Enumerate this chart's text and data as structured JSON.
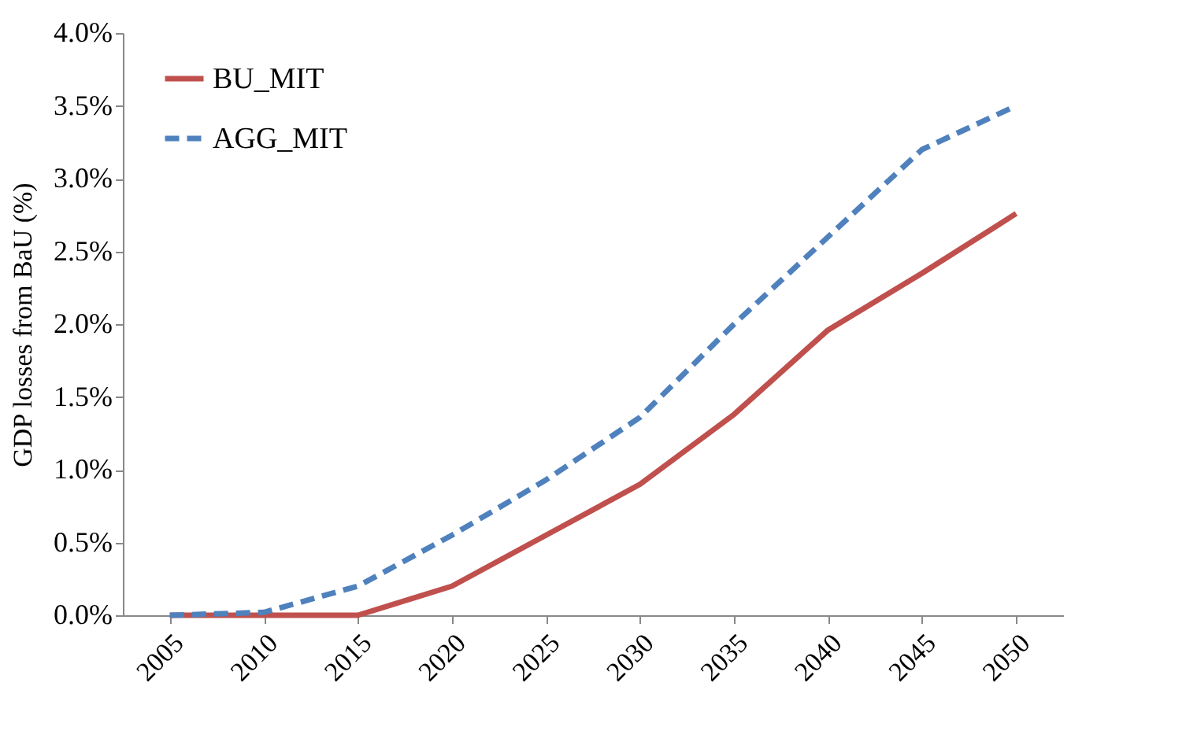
{
  "chart_data": {
    "type": "line",
    "ylabel": "GDP losses from BaU (%)",
    "categories": [
      "2005",
      "2010",
      "2015",
      "2020",
      "2025",
      "2030",
      "2035",
      "2040",
      "2045",
      "2050"
    ],
    "series": [
      {
        "name": "BU_MIT",
        "color": "#c0504d",
        "line_style": "solid",
        "values": [
          0,
          0,
          0,
          0.2,
          0.55,
          0.9,
          1.38,
          1.96,
          2.35,
          2.76
        ]
      },
      {
        "name": "AGG_MIT",
        "color": "#4f81bd",
        "line_style": "dashed",
        "values": [
          0,
          0.02,
          0.2,
          0.55,
          0.93,
          1.36,
          2.0,
          2.6,
          3.2,
          3.5
        ]
      }
    ],
    "ylim": [
      0,
      4
    ],
    "yticks": [
      {
        "value": 0,
        "label": "0.0%"
      },
      {
        "value": 0.5,
        "label": "0.5%"
      },
      {
        "value": 1,
        "label": "1.0%"
      },
      {
        "value": 1.5,
        "label": "1.5%"
      },
      {
        "value": 2,
        "label": "2.0%"
      },
      {
        "value": 2.5,
        "label": "2.5%"
      },
      {
        "value": 3,
        "label": "3.0%"
      },
      {
        "value": 3.5,
        "label": "3.5%"
      },
      {
        "value": 4,
        "label": "4.0%"
      }
    ],
    "grid": false,
    "legend": "top left",
    "marker": "none"
  }
}
